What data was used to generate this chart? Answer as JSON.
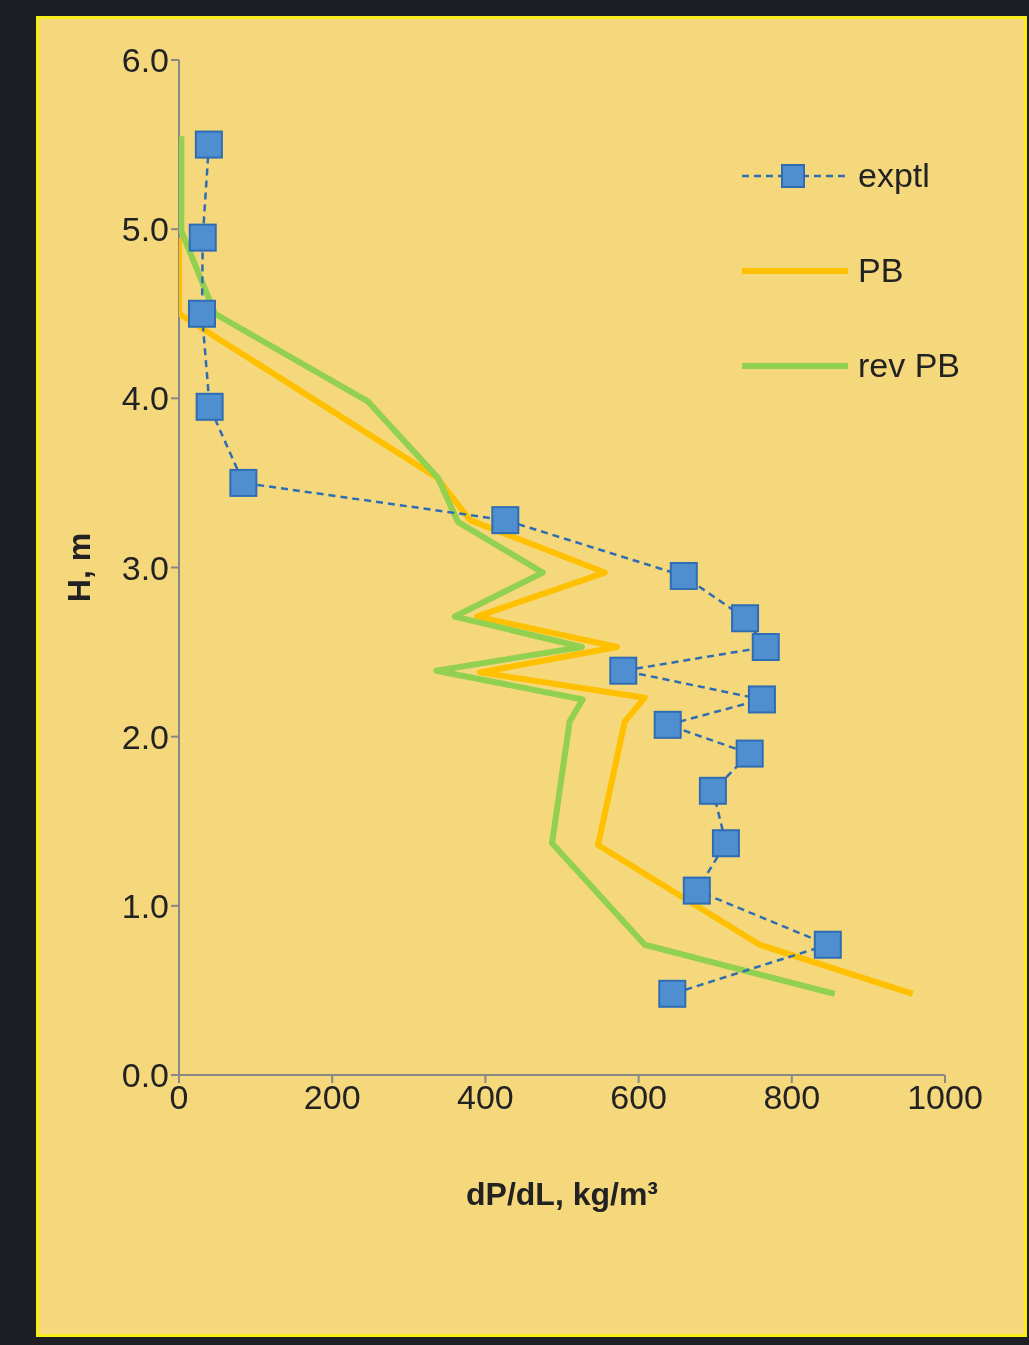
{
  "chart_data": {
    "type": "line",
    "xlabel": "dP/dL, kg/m³",
    "ylabel": "H, m",
    "xlim": [
      0,
      1000
    ],
    "xticks": [
      0,
      200,
      400,
      600,
      800,
      1000
    ],
    "ylim": [
      0,
      6
    ],
    "yticks": [
      {
        "value": 0,
        "label": "0.0"
      },
      {
        "value": 1,
        "label": "1.0"
      },
      {
        "value": 2,
        "label": "2.0"
      },
      {
        "value": 3,
        "label": "3.0"
      },
      {
        "value": 4,
        "label": "4.0"
      },
      {
        "value": 5,
        "label": "5.0"
      },
      {
        "value": 6,
        "label": "6.0"
      }
    ],
    "legend": "top right",
    "grid": false,
    "series": [
      {
        "name": "exptl",
        "color": "#2e6db4",
        "marker": "square",
        "line_style": "dashed",
        "x": [
          39,
          31,
          30,
          40,
          84,
          426,
          659,
          739,
          766,
          580,
          761,
          638,
          745,
          697,
          714,
          676,
          847,
          644
        ],
        "values": [
          5.5,
          4.95,
          4.5,
          3.95,
          3.5,
          3.28,
          2.95,
          2.7,
          2.53,
          2.39,
          2.22,
          2.07,
          1.9,
          1.68,
          1.37,
          1.09,
          0.77,
          0.48
        ]
      },
      {
        "name": "PB",
        "color": "#ffc000",
        "marker": "none",
        "line_style": "solid",
        "x": [
          0,
          0,
          337,
          380,
          556,
          389,
          572,
          393,
          608,
          582,
          547,
          758,
          958
        ],
        "values": [
          4.95,
          4.5,
          3.53,
          3.28,
          2.97,
          2.71,
          2.53,
          2.38,
          2.23,
          2.09,
          1.36,
          0.77,
          0.48
        ]
      },
      {
        "name": "rev PB",
        "color": "#92d050",
        "marker": "none",
        "line_style": "solid",
        "x": [
          3,
          3,
          47,
          247,
          338,
          364,
          475,
          360,
          526,
          336,
          527,
          510,
          487,
          608,
          856
        ],
        "values": [
          5.55,
          4.99,
          4.5,
          3.98,
          3.53,
          3.27,
          2.97,
          2.71,
          2.53,
          2.39,
          2.22,
          2.09,
          1.37,
          0.77,
          0.48
        ]
      }
    ]
  }
}
